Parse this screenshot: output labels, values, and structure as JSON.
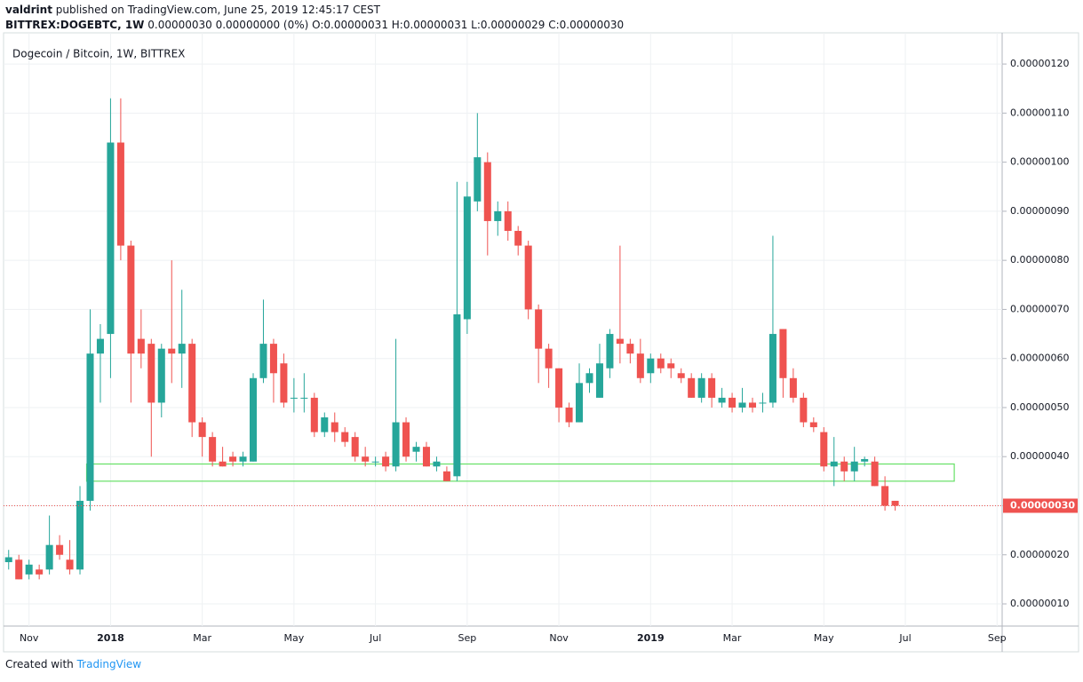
{
  "header": {
    "author": "valdrint",
    "published": "published on TradingView.com, June 25, 2019 12:45:17 CEST",
    "symbol": "BITTREX:DOGEBTC, 1W",
    "quote": "0.00000030 0.00000000 (0%) O:0.00000031 H:0.00000031 L:0.00000029 C:0.00000030"
  },
  "footer": {
    "created_with": "Created with",
    "brand": "TradingView"
  },
  "chart_data": {
    "type": "candlestick",
    "title": "Dogecoin / Bitcoin, 1W, BITTREX",
    "up_color": "#26a69a",
    "down_color": "#ef5350",
    "grid": true,
    "categories": [
      null,
      null,
      "Nov",
      null,
      null,
      null,
      null,
      null,
      null,
      null,
      "2018",
      null,
      null,
      null,
      null,
      null,
      null,
      null,
      null,
      "Mar",
      null,
      null,
      null,
      null,
      null,
      null,
      null,
      null,
      "May",
      null,
      null,
      null,
      null,
      null,
      null,
      null,
      "Jul",
      null,
      null,
      null,
      null,
      null,
      null,
      null,
      null,
      "Sep",
      null,
      null,
      null,
      null,
      null,
      null,
      null,
      null,
      "Nov",
      null,
      null,
      null,
      null,
      null,
      null,
      null,
      null,
      "2019",
      null,
      null,
      null,
      null,
      null,
      null,
      null,
      "Mar",
      null,
      null,
      null,
      null,
      null,
      null,
      null,
      null,
      "May",
      null,
      null,
      null,
      null,
      null,
      null,
      null,
      "Jul",
      null,
      null,
      null,
      null,
      null,
      null,
      null,
      null,
      "Sep"
    ],
    "open": [
      1.85e-07,
      1.9e-07,
      1.6e-07,
      1.7e-07,
      1.7e-07,
      2.2e-07,
      1.9e-07,
      1.7e-07,
      3.1e-07,
      6.1e-07,
      6.5e-07,
      1.04e-06,
      8.3e-07,
      6.4e-07,
      6.3e-07,
      5.1e-07,
      6.2e-07,
      6.1e-07,
      6.3e-07,
      4.7e-07,
      4.4e-07,
      3.9e-07,
      4e-07,
      3.9e-07,
      3.9e-07,
      5.6e-07,
      6.3e-07,
      5.9e-07,
      5.2e-07,
      5.2e-07,
      5.2e-07,
      4.5e-07,
      4.7e-07,
      4.5e-07,
      4.4e-07,
      4e-07,
      3.9e-07,
      4e-07,
      3.8e-07,
      4.7e-07,
      4.1e-07,
      4.2e-07,
      3.8e-07,
      3.7e-07,
      3.6e-07,
      6.8e-07,
      9.2e-07,
      1e-06,
      8.8e-07,
      9e-07,
      8.6e-07,
      8.3e-07,
      7e-07,
      6.2e-07,
      5.8e-07,
      5e-07,
      4.7e-07,
      5.5e-07,
      5.2e-07,
      5.8e-07,
      6.4e-07,
      6.3e-07,
      6.1e-07,
      5.7e-07,
      6e-07,
      5.9e-07,
      5.7e-07,
      5.6e-07,
      5.2e-07,
      5.6e-07,
      5.1e-07,
      5.2e-07,
      5e-07,
      5.1e-07,
      5.1e-07,
      5.1e-07,
      6.6e-07,
      5.6e-07,
      5.2e-07,
      4.7e-07,
      4.5e-07,
      3.8e-07,
      3.9e-07,
      3.7e-07,
      3.9e-07,
      3.9e-07,
      3.4e-07,
      3.1e-07,
      null,
      null,
      null,
      null,
      null,
      null,
      null,
      null,
      null,
      null
    ],
    "high": [
      2.1e-07,
      2e-07,
      1.9e-07,
      1.8e-07,
      2.8e-07,
      2.4e-07,
      2.3e-07,
      3.4e-07,
      7e-07,
      6.7e-07,
      1.13e-06,
      1.13e-06,
      8.4e-07,
      7e-07,
      6.4e-07,
      6.3e-07,
      8e-07,
      7.4e-07,
      6.4e-07,
      4.8e-07,
      4.5e-07,
      4.2e-07,
      4.1e-07,
      4.1e-07,
      5.7e-07,
      7.2e-07,
      6.4e-07,
      6.1e-07,
      5.6e-07,
      5.7e-07,
      5.3e-07,
      4.9e-07,
      4.9e-07,
      4.6e-07,
      4.5e-07,
      4.2e-07,
      4e-07,
      4.1e-07,
      6.4e-07,
      4.8e-07,
      4.3e-07,
      4.3e-07,
      4e-07,
      3.8e-07,
      9.6e-07,
      9.6e-07,
      1.1e-06,
      1.02e-06,
      9.2e-07,
      9.2e-07,
      8.7e-07,
      8.4e-07,
      7.1e-07,
      6.3e-07,
      5.8e-07,
      5.1e-07,
      5.9e-07,
      5.8e-07,
      6.3e-07,
      6.6e-07,
      8.3e-07,
      6.4e-07,
      6.4e-07,
      6.1e-07,
      6.1e-07,
      6e-07,
      5.8e-07,
      5.7e-07,
      5.7e-07,
      5.7e-07,
      5.4e-07,
      5.3e-07,
      5.4e-07,
      5.2e-07,
      5.3e-07,
      8.5e-07,
      6.6e-07,
      5.8e-07,
      5.3e-07,
      4.8e-07,
      4.6e-07,
      4.4e-07,
      4e-07,
      4.2e-07,
      4e-07,
      4e-07,
      3.6e-07,
      3.1e-07,
      null,
      null,
      null,
      null,
      null,
      null,
      null,
      null,
      null,
      null
    ],
    "low": [
      1.7e-07,
      1.5e-07,
      1.5e-07,
      1.5e-07,
      1.6e-07,
      1.9e-07,
      1.6e-07,
      1.6e-07,
      2.9e-07,
      5.1e-07,
      5.6e-07,
      8e-07,
      5.1e-07,
      5.8e-07,
      4e-07,
      4.8e-07,
      5.5e-07,
      5.4e-07,
      4.4e-07,
      4e-07,
      3.8e-07,
      3.8e-07,
      3.8e-07,
      3.8e-07,
      3.9e-07,
      5.5e-07,
      5.1e-07,
      5e-07,
      4.9e-07,
      4.9e-07,
      4.4e-07,
      4.4e-07,
      4.3e-07,
      4.2e-07,
      3.9e-07,
      3.8e-07,
      3.8e-07,
      3.7e-07,
      3.7e-07,
      3.9e-07,
      3.9e-07,
      3.8e-07,
      3.7e-07,
      3.5e-07,
      3.5e-07,
      6.5e-07,
      9e-07,
      8.1e-07,
      8.5e-07,
      8.4e-07,
      8.1e-07,
      6.8e-07,
      5.5e-07,
      5.4e-07,
      4.7e-07,
      4.6e-07,
      4.7e-07,
      5.3e-07,
      5.2e-07,
      5.6e-07,
      5.9e-07,
      5.9e-07,
      5.5e-07,
      5.5e-07,
      5.7e-07,
      5.6e-07,
      5.5e-07,
      5.2e-07,
      5.1e-07,
      5e-07,
      5e-07,
      4.9e-07,
      4.9e-07,
      4.9e-07,
      4.9e-07,
      5e-07,
      5.2e-07,
      5.1e-07,
      4.6e-07,
      4.5e-07,
      3.7e-07,
      3.4e-07,
      3.5e-07,
      3.5e-07,
      3.8e-07,
      3.4e-07,
      2.9e-07,
      2.9e-07,
      null,
      null,
      null,
      null,
      null,
      null,
      null,
      null,
      null,
      null
    ],
    "close": [
      1.95e-07,
      1.5e-07,
      1.8e-07,
      1.6e-07,
      2.2e-07,
      2e-07,
      1.7e-07,
      3.1e-07,
      6.1e-07,
      6.4e-07,
      1.04e-06,
      8.3e-07,
      6.1e-07,
      6.1e-07,
      5.1e-07,
      6.2e-07,
      6.1e-07,
      6.3e-07,
      4.7e-07,
      4.4e-07,
      3.9e-07,
      3.8e-07,
      3.9e-07,
      4e-07,
      5.6e-07,
      6.3e-07,
      5.7e-07,
      5.1e-07,
      5.2e-07,
      5.2e-07,
      4.5e-07,
      4.8e-07,
      4.5e-07,
      4.3e-07,
      4e-07,
      3.9e-07,
      3.9e-07,
      3.8e-07,
      4.7e-07,
      4e-07,
      4.2e-07,
      3.8e-07,
      3.9e-07,
      3.5e-07,
      6.9e-07,
      9.3e-07,
      1.01e-06,
      8.8e-07,
      9e-07,
      8.6e-07,
      8.3e-07,
      7e-07,
      6.2e-07,
      5.8e-07,
      5e-07,
      4.7e-07,
      5.5e-07,
      5.7e-07,
      5.9e-07,
      6.5e-07,
      6.3e-07,
      6.1e-07,
      5.6e-07,
      6e-07,
      5.8e-07,
      5.8e-07,
      5.6e-07,
      5.2e-07,
      5.6e-07,
      5.2e-07,
      5.2e-07,
      5e-07,
      5.1e-07,
      5e-07,
      5.1e-07,
      6.5e-07,
      5.6e-07,
      5.2e-07,
      4.7e-07,
      4.6e-07,
      3.8e-07,
      3.9e-07,
      3.7e-07,
      3.9e-07,
      3.95e-07,
      3.4e-07,
      3e-07,
      3e-07,
      null,
      null,
      null,
      null,
      null,
      null,
      null,
      null,
      null,
      null
    ],
    "ylim": [
      5.48e-08,
      1.2635e-06
    ],
    "yticks": [
      {
        "value": 1e-07,
        "label": "0.00000010"
      },
      {
        "value": 2e-07,
        "label": "0.00000020"
      },
      {
        "value": 3e-07,
        "label": "0.00000030"
      },
      {
        "value": 4e-07,
        "label": "0.00000040"
      },
      {
        "value": 5e-07,
        "label": "0.00000050"
      },
      {
        "value": 6e-07,
        "label": "0.00000060"
      },
      {
        "value": 7e-07,
        "label": "0.00000070"
      },
      {
        "value": 8e-07,
        "label": "0.00000080"
      },
      {
        "value": 9e-07,
        "label": "0.00000090"
      },
      {
        "value": 1e-06,
        "label": "0.00000100"
      },
      {
        "value": 1.1e-06,
        "label": "0.00000110"
      },
      {
        "value": 1.2e-06,
        "label": "0.00000120"
      }
    ],
    "last_price": {
      "value": 3e-07,
      "label": "0.00000030",
      "color": "#ef5350"
    },
    "zone": {
      "low": 3.5e-07,
      "high": 3.85e-07,
      "color": "#66e066"
    }
  }
}
